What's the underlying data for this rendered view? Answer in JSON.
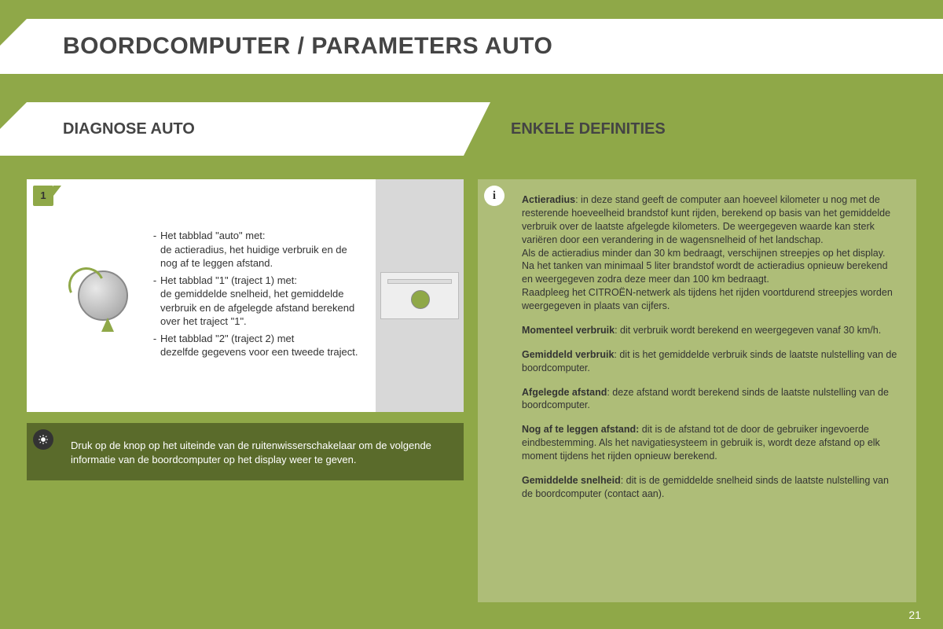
{
  "background_color": "#8fa848",
  "panel_olive_color": "#aebd78",
  "panel_dark_color": "#5a6b2b",
  "page_number": "21",
  "title": "BOORDCOMPUTER / PARAMETERS AUTO",
  "section_left_title": "DIAGNOSE AUTO",
  "section_right_title": "ENKELE DEFINITIES",
  "badge_step": "1",
  "badge_info": "i",
  "tabs": [
    {
      "lead": "Het tabblad \"auto\" met:",
      "body": "de actieradius, het huidige verbruik en de nog af te leggen afstand."
    },
    {
      "lead": "Het tabblad \"1\" (traject 1) met:",
      "body": "de gemiddelde snelheid, het gemiddelde verbruik en de afgelegde afstand berekend over het traject \"1\"."
    },
    {
      "lead": "Het tabblad \"2\" (traject 2) met",
      "body": "dezelfde gegevens voor een tweede traject."
    }
  ],
  "tip_text": "Druk op de knop op het uiteinde van de ruitenwisserschakelaar om de volgende informatie van de boordcomputer op het display weer te geven.",
  "definitions": [
    {
      "term": "Actieradius",
      "sep": ": ",
      "text": "in deze stand geeft de computer aan hoeveel kilometer u nog met de resterende hoeveelheid brandstof kunt rijden, berekend op basis van het gemiddelde verbruik over de laatste afgelegde kilometers. De weergegeven waarde kan sterk variëren door een verandering in de wagensnelheid of het landschap.\nAls de actieradius minder dan 30 km bedraagt, verschijnen streepjes op het display. Na het tanken van minimaal 5 liter brandstof wordt de actieradius opnieuw berekend en weergegeven zodra deze meer dan 100 km bedraagt.\nRaadpleeg het CITROËN-netwerk als tijdens het rijden voortdurend streepjes worden weergegeven in plaats van cijfers."
    },
    {
      "term": "Momenteel verbruik",
      "sep": ": ",
      "text": "dit verbruik wordt berekend en weergegeven vanaf 30 km/h."
    },
    {
      "term": "Gemiddeld verbruik",
      "sep": ": ",
      "text": "dit is het gemiddelde verbruik sinds de laatste nulstelling van de boordcomputer."
    },
    {
      "term": "Afgelegde afstand",
      "sep": ": ",
      "text": "deze afstand wordt berekend sinds de laatste nulstelling van de boordcomputer."
    },
    {
      "term": "Nog af te leggen afstand:",
      "sep": " ",
      "text": "dit is de afstand tot de door de gebruiker ingevoerde eindbestemming. Als het navigatiesysteem in gebruik is, wordt deze afstand op elk moment tijdens het rijden opnieuw berekend."
    },
    {
      "term": "Gemiddelde snelheid",
      "sep": ": ",
      "text": "dit is de gemiddelde snelheid sinds de laatste nulstelling van de boordcomputer (contact aan)."
    }
  ]
}
